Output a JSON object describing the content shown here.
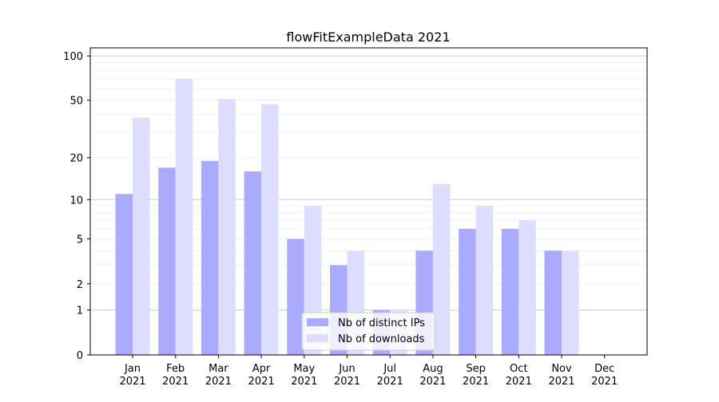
{
  "chart_data": {
    "type": "bar",
    "title": "flowFitExampleData 2021",
    "xlabel": "",
    "ylabel": "",
    "y_scale": "log(1+y)",
    "ylim": [
      0,
      110
    ],
    "y_ticks": [
      0,
      1,
      2,
      5,
      10,
      20,
      50,
      100
    ],
    "grid": "horizontal",
    "legend": "bottom-center",
    "categories": [
      [
        "Jan",
        "2021"
      ],
      [
        "Feb",
        "2021"
      ],
      [
        "Mar",
        "2021"
      ],
      [
        "Apr",
        "2021"
      ],
      [
        "May",
        "2021"
      ],
      [
        "Jun",
        "2021"
      ],
      [
        "Jul",
        "2021"
      ],
      [
        "Aug",
        "2021"
      ],
      [
        "Sep",
        "2021"
      ],
      [
        "Oct",
        "2021"
      ],
      [
        "Nov",
        "2021"
      ],
      [
        "Dec",
        "2021"
      ]
    ],
    "series": [
      {
        "name": "Nb of distinct IPs",
        "color": "#aaaaff",
        "values": [
          11,
          17,
          19,
          16,
          5,
          3,
          1,
          4,
          6,
          6,
          4,
          0
        ]
      },
      {
        "name": "Nb of downloads",
        "color": "#ddddff",
        "values": [
          38,
          70,
          51,
          47,
          9,
          4,
          1,
          13,
          9,
          7,
          4,
          0
        ]
      }
    ]
  }
}
